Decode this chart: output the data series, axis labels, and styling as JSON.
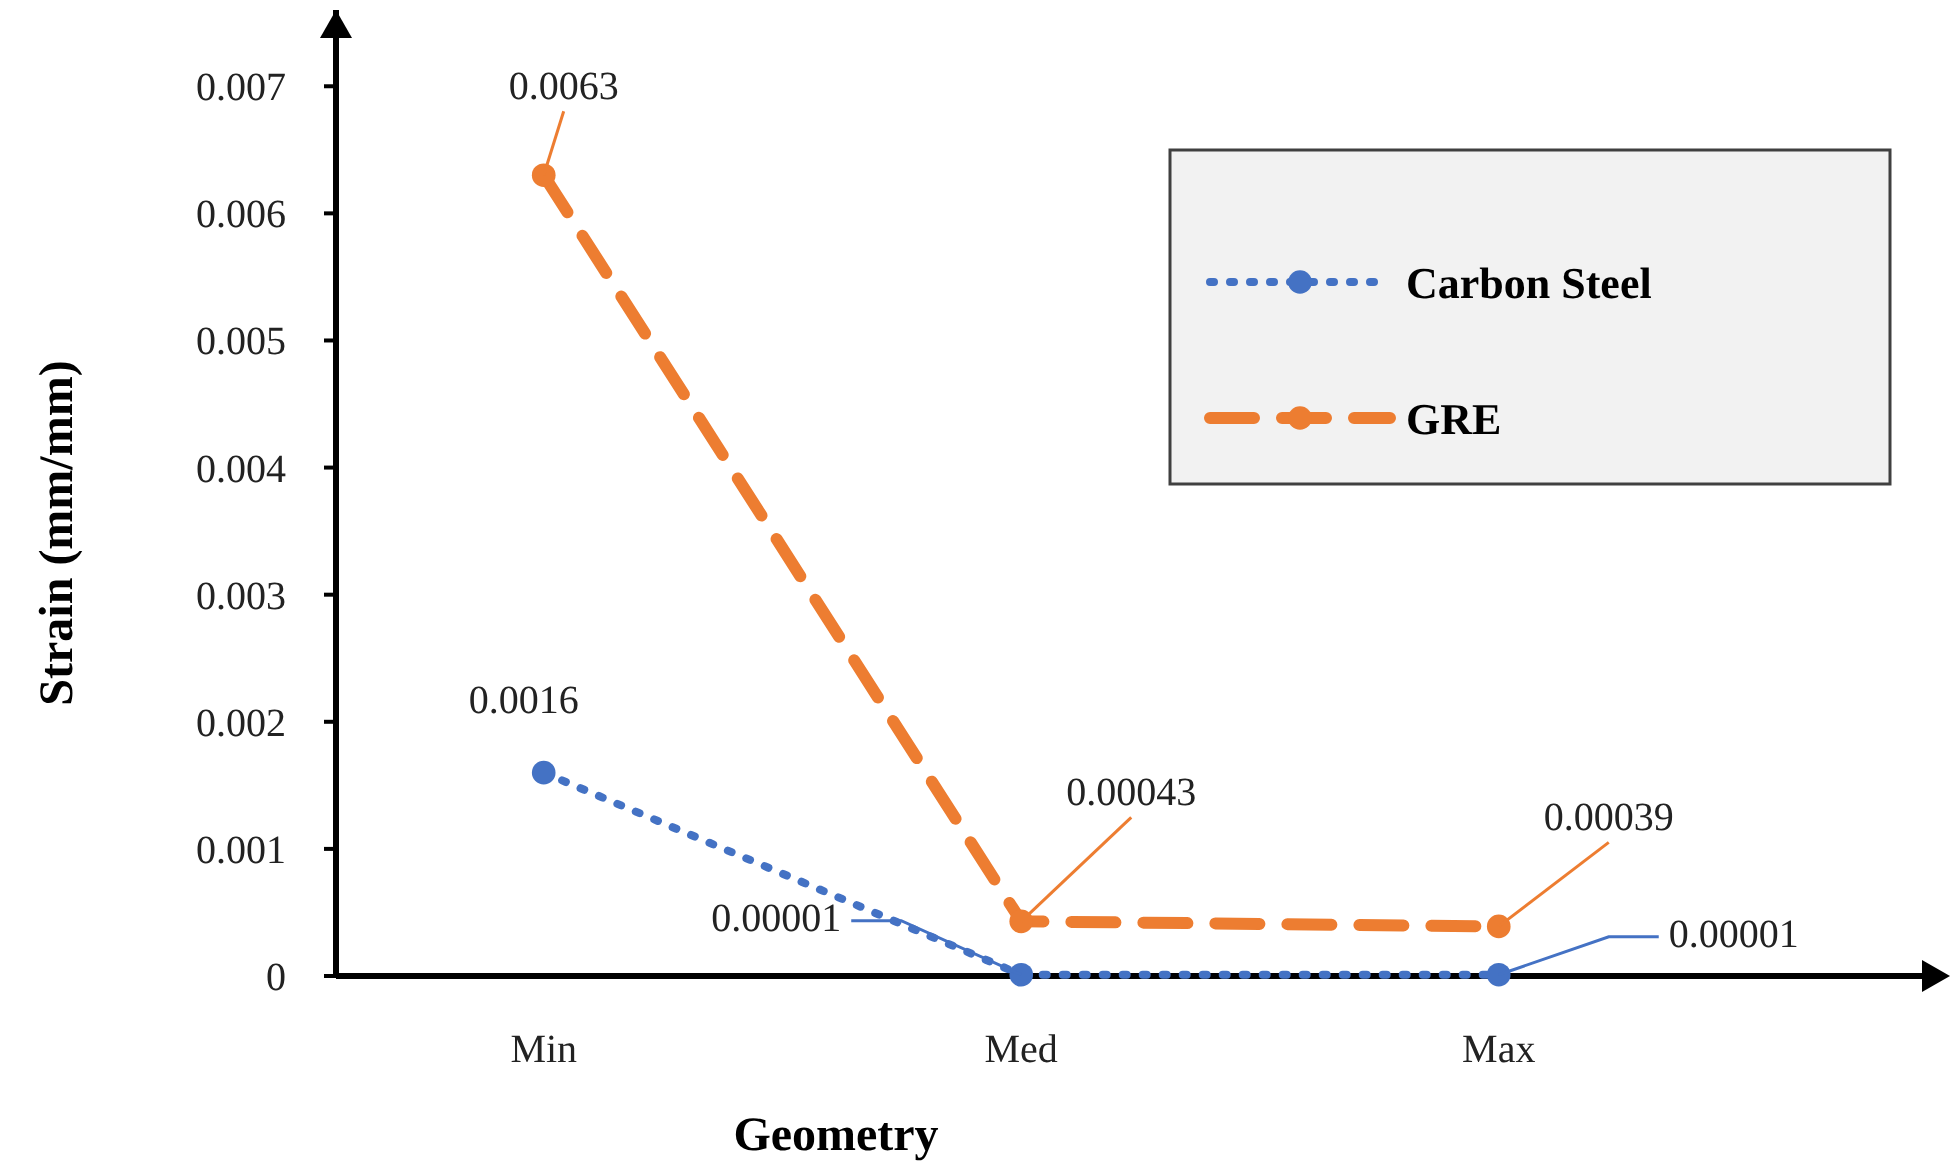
{
  "chart_data": {
    "type": "line",
    "xlabel": "Geometry",
    "ylabel": "Strain (mm/mm)",
    "categories": [
      "Min",
      "Med",
      "Max"
    ],
    "series": [
      {
        "name": "Carbon Steel",
        "color": "#4472c4",
        "line_style": "dotted",
        "values": [
          0.0016,
          1e-05,
          1e-05
        ],
        "value_labels": [
          "0.0016",
          "0.00001",
          "0.00001"
        ]
      },
      {
        "name": "GRE",
        "color": "#ed7d31",
        "line_style": "dashed",
        "values": [
          0.0063,
          0.00043,
          0.00039
        ],
        "value_labels": [
          "0.0063",
          "0.00043",
          "0.00039"
        ]
      }
    ],
    "ylim": [
      0,
      0.0076
    ],
    "yticks": [
      0,
      0.001,
      0.002,
      0.003,
      0.004,
      0.005,
      0.006,
      0.007
    ],
    "marker": "circle",
    "legend": "top right",
    "grid": false
  }
}
